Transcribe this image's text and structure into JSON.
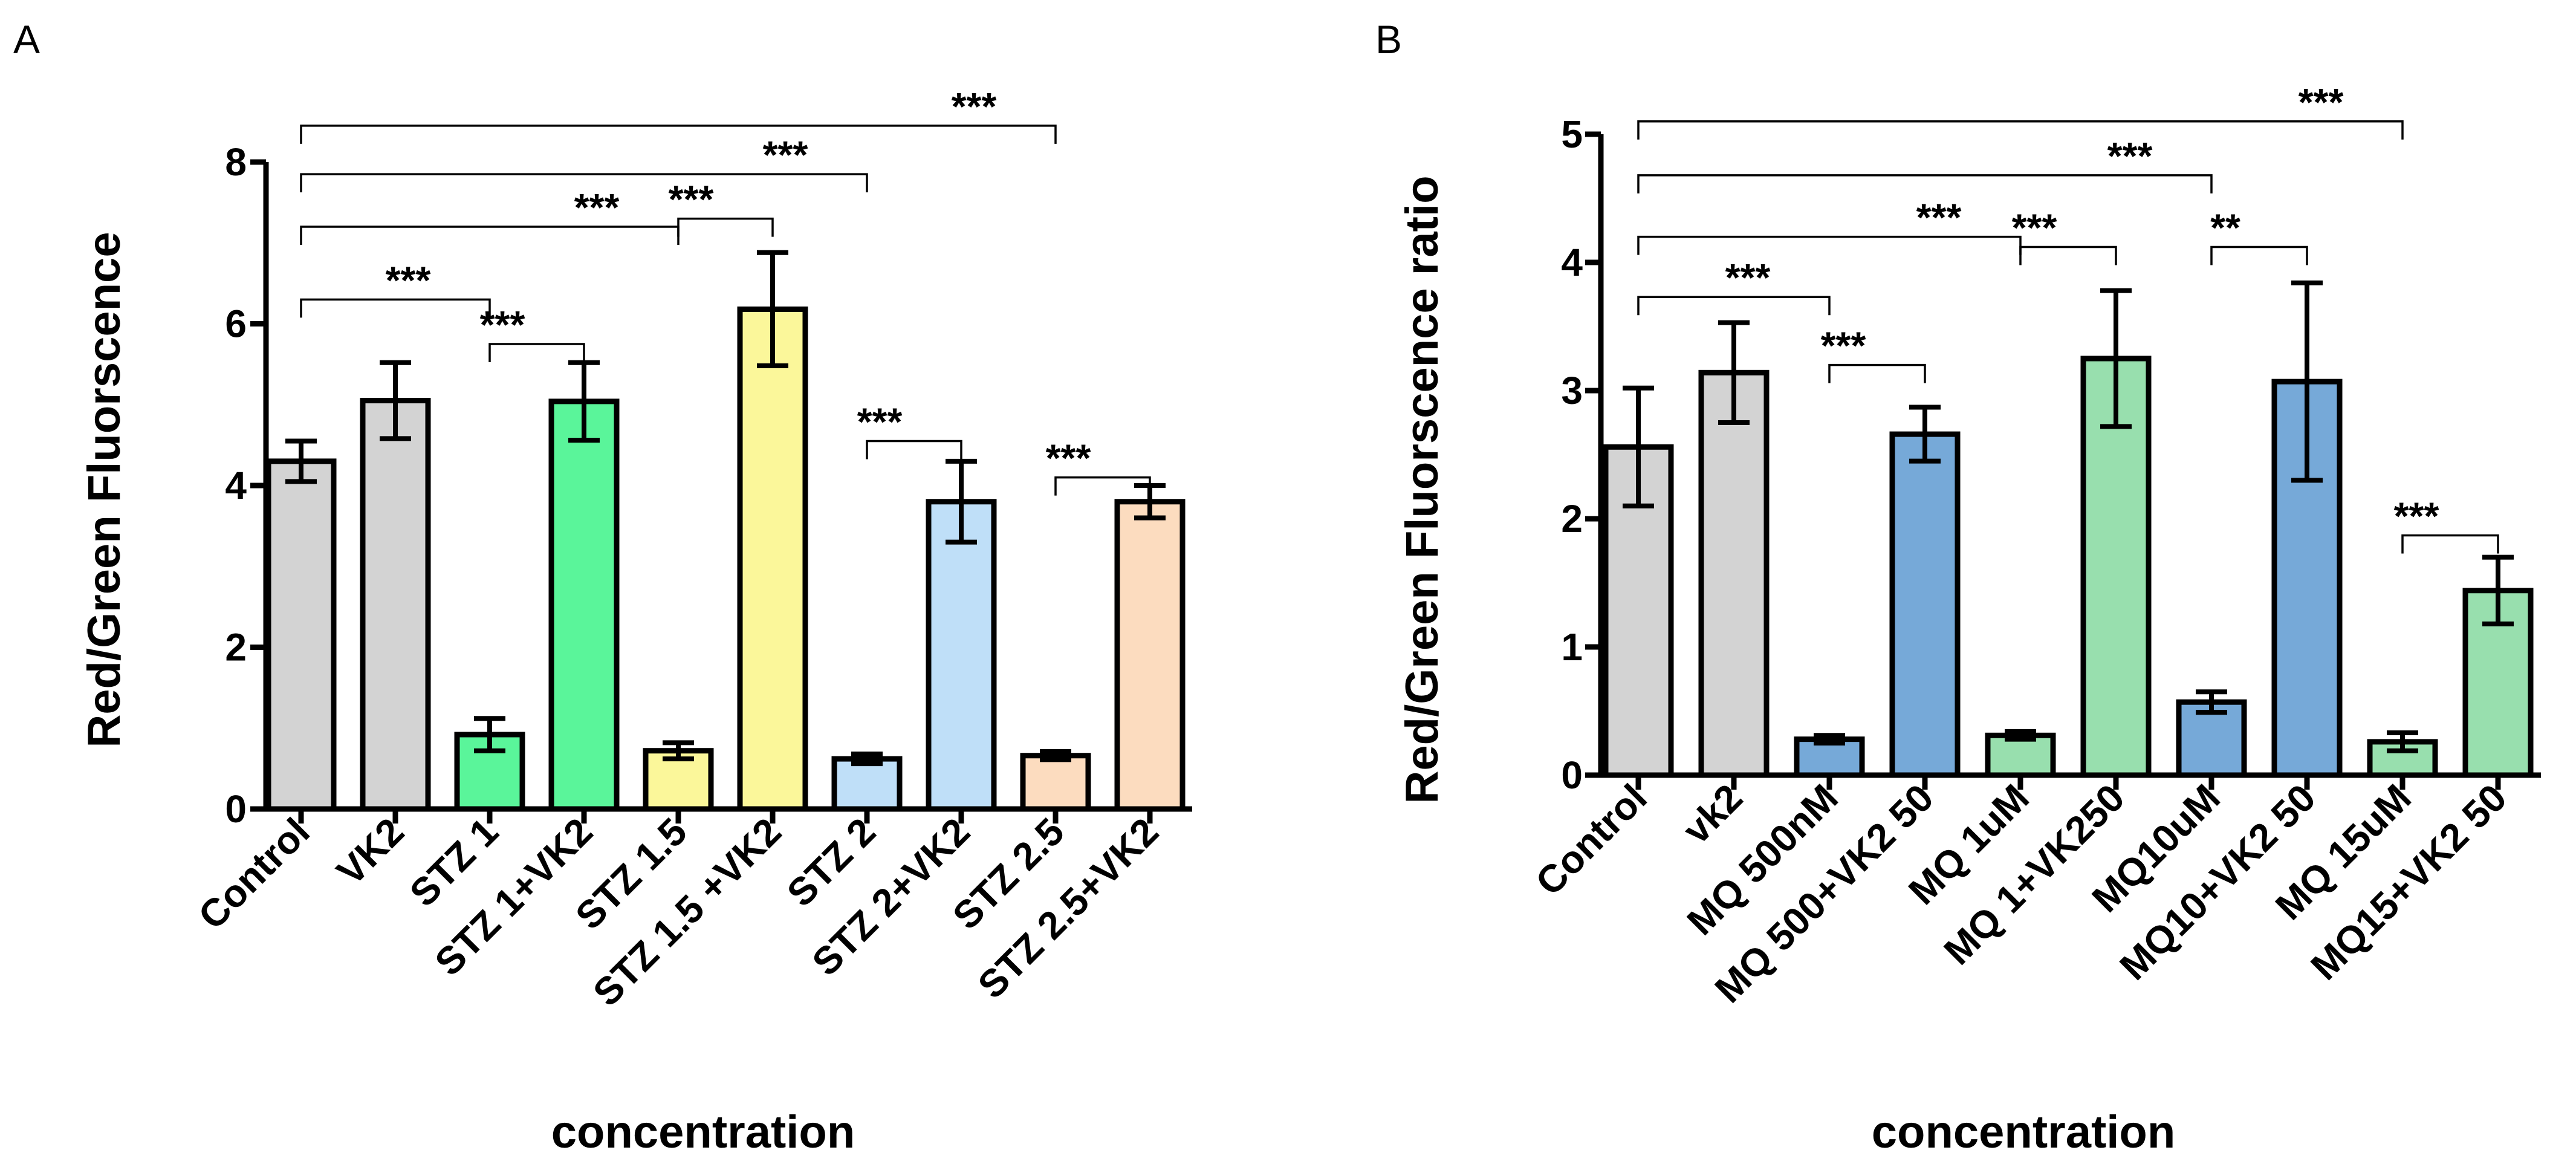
{
  "chart_data": [
    {
      "panel": "A",
      "type": "bar",
      "title": "",
      "xlabel": "concentration",
      "ylabel": "Red/Green Fluorscence",
      "ylim": [
        0,
        8
      ],
      "yticks": [
        0,
        2,
        4,
        6,
        8
      ],
      "categories": [
        "Control",
        "VK2",
        "STZ 1",
        "STZ 1+VK2",
        "STZ 1.5",
        "STZ 1.5 +VK2",
        "STZ 2",
        "STZ 2+VK2",
        "STZ 2.5",
        "STZ 2.5+VK2"
      ],
      "values": [
        4.3,
        5.05,
        0.92,
        5.04,
        0.72,
        6.18,
        0.62,
        3.8,
        0.66,
        3.8
      ],
      "errors": [
        0.25,
        0.47,
        0.2,
        0.48,
        0.1,
        0.7,
        0.06,
        0.5,
        0.05,
        0.2
      ],
      "colors": [
        "#d3d3d3",
        "#d3d3d3",
        "#5af59a",
        "#5af59a",
        "#fbf79a",
        "#fbf79a",
        "#bfdff8",
        "#bfdff8",
        "#fcdcbf",
        "#fcdcbf"
      ],
      "significance": [
        {
          "from": 0,
          "to": 2,
          "label": "***",
          "level": 6.3
        },
        {
          "from": 2,
          "to": 3,
          "label": "***",
          "level": 5.75
        },
        {
          "from": 0,
          "to": 4,
          "label": "***",
          "level": 7.2
        },
        {
          "from": 4,
          "to": 5,
          "label": "***",
          "level": 7.3
        },
        {
          "from": 0,
          "to": 6,
          "label": "***",
          "level": 7.85
        },
        {
          "from": 6,
          "to": 7,
          "label": "***",
          "level": 4.55
        },
        {
          "from": 0,
          "to": 8,
          "label": "***",
          "level": 8.45
        },
        {
          "from": 8,
          "to": 9,
          "label": "***",
          "level": 4.1
        }
      ]
    },
    {
      "panel": "B",
      "type": "bar",
      "title": "",
      "xlabel": "concentration",
      "ylabel": "Red/Green Fluorscence ratio",
      "ylim": [
        0,
        5
      ],
      "yticks": [
        0,
        1,
        2,
        3,
        4,
        5
      ],
      "categories": [
        "Control",
        "vk2",
        "MQ 500nM",
        "MQ 500+VK2 50",
        "MQ 1uM",
        "MQ 1+VK250",
        "MQ10uM",
        "MQ10+VK2 50",
        "MQ 15uM",
        "MQ15+VK2 50"
      ],
      "values": [
        2.56,
        3.14,
        0.28,
        2.66,
        0.31,
        3.25,
        0.57,
        3.07,
        0.26,
        1.44
      ],
      "errors": [
        0.46,
        0.39,
        0.03,
        0.21,
        0.03,
        0.53,
        0.08,
        0.77,
        0.07,
        0.26
      ],
      "colors": [
        "#d3d3d3",
        "#d3d3d3",
        "#76a9d8",
        "#76a9d8",
        "#98dfae",
        "#98dfae",
        "#76a9d8",
        "#76a9d8",
        "#98dfae",
        "#98dfae"
      ],
      "significance": [
        {
          "from": 0,
          "to": 2,
          "label": "***",
          "level": 3.73
        },
        {
          "from": 2,
          "to": 3,
          "label": "***",
          "level": 3.2
        },
        {
          "from": 0,
          "to": 4,
          "label": "***",
          "level": 4.2
        },
        {
          "from": 4,
          "to": 5,
          "label": "***",
          "level": 4.12
        },
        {
          "from": 0,
          "to": 6,
          "label": "***",
          "level": 4.68
        },
        {
          "from": 6,
          "to": 7,
          "label": "**",
          "level": 4.12
        },
        {
          "from": 0,
          "to": 8,
          "label": "***",
          "level": 5.1
        },
        {
          "from": 8,
          "to": 9,
          "label": "***",
          "level": 1.87
        }
      ]
    }
  ]
}
